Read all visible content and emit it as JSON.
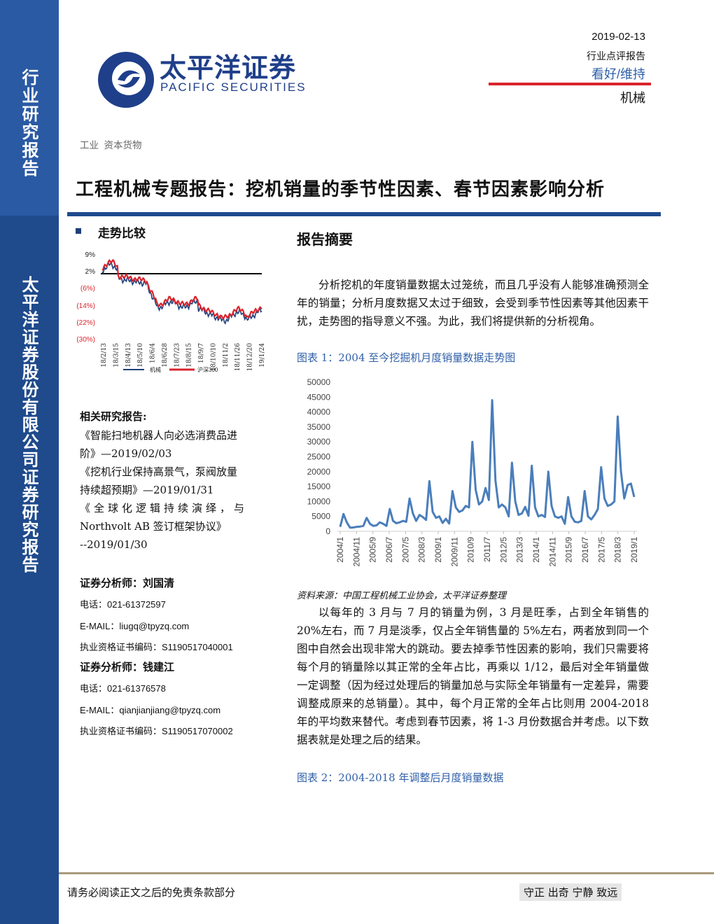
{
  "sidebar": {
    "top_label": "行业研究报告",
    "company_label": "太平洋证券股份有限公司证券研究报告"
  },
  "header": {
    "brand_cn": "太平洋证券",
    "brand_en": "PACIFIC SECURITIES",
    "date": "2019-02-13",
    "report_type": "行业点评报告",
    "rating": "看好/维持",
    "sector": "机械"
  },
  "category": "工业  资本货物",
  "title": "工程机械专题报告：挖机销量的季节性因素、春节因素影响分析",
  "trend": {
    "heading": "走势比较",
    "yticks": [
      "9%",
      "2%",
      "(6%)",
      "(14%)",
      "(22%)",
      "(30%)"
    ],
    "xticks": [
      "18/2/13",
      "18/3/15",
      "18/4/13",
      "18/5/10",
      "18/6/4",
      "18/6/28",
      "18/7/23",
      "18/8/15",
      "18/9/7",
      "18/10/10",
      "18/11/2",
      "18/11/26",
      "18/12/20",
      "19/1/24"
    ],
    "legend": [
      "机械",
      "沪深300"
    ],
    "colors": {
      "series1": "#1f3f7a",
      "series2": "#d9242c"
    }
  },
  "related": {
    "heading": "相关研究报告:",
    "lines": [
      "《智能扫地机器人向必选消费品进",
      "阶》—2019/02/03",
      "《挖机行业保持高景气，泵阀放量",
      "持续超预期》—2019/01/31",
      "《全球化逻辑持续演绎，与",
      "Northvolt AB 签订框架协议》",
      "--2019/01/30"
    ]
  },
  "analysts": [
    {
      "heading": "证券分析师：刘国清",
      "phone": "电话：021-61372597",
      "email": "E-MAIL：liugq@tpyzq.com",
      "cert": "执业资格证书编码：S1190517040001"
    },
    {
      "heading": "证券分析师：钱建江",
      "phone": "电话：021-61376578",
      "email": "E-MAIL：qianjianjiang@tpyzq.com",
      "cert": "执业资格证书编码：S1190517070002"
    }
  ],
  "summary": {
    "heading": "报告摘要",
    "para1": "分析挖机的年度销量数据太过笼统，而且几乎没有人能够准确预测全年的销量；分析月度数据又太过于细致，会受到季节性因素等其他因素干扰，走势图的指导意义不强。为此，我们将提供新的分析视角。",
    "fig1_caption": "图表 1：2004 至今挖掘机月度销量数据走势图",
    "source": "资料来源：中国工程机械工业协会，太平洋证券整理",
    "para2": "以每年的 3 月与 7 月的销量为例，3 月是旺季，占到全年销售的 20%左右，而 7 月是淡季，仅占全年销售量的 5%左右，两者放到同一个图中自然会出现非常大的跳动。要去掉季节性因素的影响，我们只需要将每个月的销量除以其正常的全年占比，再乘以 1/12，最后对全年销量做一定调整（因为经过处理后的销量加总与实际全年销量有一定差异，需要调整成原来的总销量）。其中，每个月正常的全年占比则用 2004-2018 年的平均数来替代。考虑到春节因素，将 1-3 月份数据合并考虑。以下数据表就是处理之后的结果。",
    "fig2_caption": "图表 2：2004-2018 年调整后月度销量数据"
  },
  "chart_data": {
    "type": "line",
    "title": "",
    "xlabel": "",
    "ylabel": "",
    "ylim": [
      0,
      50000
    ],
    "yticks": [
      0,
      5000,
      10000,
      15000,
      20000,
      25000,
      30000,
      35000,
      40000,
      45000,
      50000
    ],
    "xticks": [
      "2004/1",
      "2004/11",
      "2005/9",
      "2006/7",
      "2007/5",
      "2008/3",
      "2009/1",
      "2009/11",
      "2010/9",
      "2011/7",
      "2012/5",
      "2013/3",
      "2014/1",
      "2014/11",
      "2015/9",
      "2016/7",
      "2017/5",
      "2018/3",
      "2019/1"
    ],
    "series": [
      {
        "values": [
          1500,
          5800,
          3000,
          1200,
          1300,
          1500,
          1600,
          1800,
          4500,
          2500,
          1800,
          2000,
          3000,
          2500,
          1800,
          7500,
          3500,
          2700,
          3000,
          3500,
          3200,
          11000,
          6000,
          3500,
          5500,
          4800,
          3800,
          16800,
          6500,
          4500,
          5000,
          2800,
          4200,
          2600,
          13500,
          8000,
          6500,
          7000,
          8500,
          8000,
          30000,
          14000,
          9000,
          10000,
          14500,
          10500,
          44000,
          17000,
          8000,
          9000,
          8000,
          5000,
          23000,
          10000,
          5500,
          6000,
          8200,
          5200,
          22000,
          8000,
          5000,
          5500,
          4800,
          20000,
          8500,
          5000,
          4500,
          5000,
          2500,
          11500,
          5000,
          3200,
          3000,
          3500,
          13500,
          5000,
          4000,
          5500,
          7500,
          21500,
          11000,
          8500,
          9000,
          10000,
          38500,
          20000,
          11000,
          15500,
          16000,
          11500
        ]
      }
    ]
  },
  "footer": {
    "disclaimer": "请务必阅读正文之后的免责条款部分",
    "motto": "守正 出奇 宁静 致远"
  }
}
